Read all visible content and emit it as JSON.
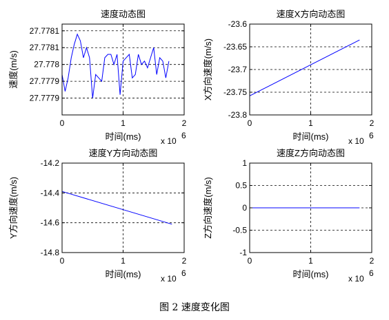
{
  "figure_caption": "图 2  速度变化图",
  "chart_data": [
    {
      "type": "line",
      "title": "速度动态图",
      "xlabel": "时间(ms)",
      "ylabel": "速度(m/s)",
      "x_multiplier": "x 10",
      "x_multiplier_exp": "6",
      "xlim": [
        0,
        2
      ],
      "ylim": [
        27.77785,
        27.77812
      ],
      "xticks": [
        0,
        1,
        2
      ],
      "xtick_labels": [
        "0",
        "1",
        "2"
      ],
      "yticks": [
        27.7779,
        27.77795,
        27.778,
        27.77805,
        27.7781
      ],
      "ytick_labels": [
        "27.7779",
        "27.7779",
        "27.778",
        "27.7781",
        "27.7781"
      ],
      "grid": true,
      "color": "#0000ff",
      "series": [
        {
          "x": [
            0,
            0.05,
            0.1,
            0.15,
            0.2,
            0.25,
            0.3,
            0.35,
            0.4,
            0.45,
            0.5,
            0.55,
            0.6,
            0.65,
            0.7,
            0.75,
            0.8,
            0.85,
            0.9,
            0.95,
            1.0,
            1.05,
            1.1,
            1.15,
            1.2,
            1.25,
            1.3,
            1.35,
            1.4,
            1.45,
            1.5,
            1.55,
            1.6,
            1.65,
            1.7,
            1.75
          ],
          "y": [
            27.77797,
            27.77792,
            27.77796,
            27.77802,
            27.77806,
            27.77809,
            27.77807,
            27.77802,
            27.77805,
            27.77802,
            27.7779,
            27.77797,
            27.77796,
            27.77795,
            27.77802,
            27.77803,
            27.77803,
            27.778,
            27.77803,
            27.77791,
            27.77801,
            27.77802,
            27.77803,
            27.77796,
            27.77797,
            27.77803,
            27.778,
            27.77801,
            27.77799,
            27.77802,
            27.77805,
            27.77797,
            27.77802,
            27.77801,
            27.77796,
            27.77801
          ]
        }
      ]
    },
    {
      "type": "line",
      "title": "速度X方向动态图",
      "xlabel": "时间(ms)",
      "ylabel": "X方向速度(m/s)",
      "x_multiplier": "x 10",
      "x_multiplier_exp": "6",
      "xlim": [
        0,
        2
      ],
      "ylim": [
        -23.8,
        -23.6
      ],
      "xticks": [
        0,
        1,
        2
      ],
      "xtick_labels": [
        "0",
        "1",
        "2"
      ],
      "yticks": [
        -23.8,
        -23.75,
        -23.7,
        -23.65,
        -23.6
      ],
      "ytick_labels": [
        "-23.8",
        "-23.75",
        "-23.7",
        "-23.65",
        "-23.6"
      ],
      "grid": true,
      "color": "#0000ff",
      "series": [
        {
          "x": [
            0,
            1.8
          ],
          "y": [
            -23.758,
            -23.635
          ]
        }
      ]
    },
    {
      "type": "line",
      "title": "速度Y方向动态图",
      "xlabel": "时间(ms)",
      "ylabel": "Y方向速度(m/s)",
      "x_multiplier": "x 10",
      "x_multiplier_exp": "6",
      "xlim": [
        0,
        2
      ],
      "ylim": [
        -14.8,
        -14.2
      ],
      "xticks": [
        0,
        1,
        2
      ],
      "xtick_labels": [
        "0",
        "1",
        "2"
      ],
      "yticks": [
        -14.8,
        -14.6,
        -14.4,
        -14.2
      ],
      "ytick_labels": [
        "-14.8",
        "-14.6",
        "-14.4",
        "-14.2"
      ],
      "grid": true,
      "color": "#0000ff",
      "series": [
        {
          "x": [
            0,
            1.8
          ],
          "y": [
            -14.39,
            -14.61
          ]
        }
      ]
    },
    {
      "type": "line",
      "title": "速度Z方向动态图",
      "xlabel": "时间(ms)",
      "ylabel": "Z方向速度(m/s)",
      "x_multiplier": "x 10",
      "x_multiplier_exp": "6",
      "xlim": [
        0,
        2
      ],
      "ylim": [
        -1,
        1
      ],
      "xticks": [
        0,
        1,
        2
      ],
      "xtick_labels": [
        "0",
        "1",
        "2"
      ],
      "yticks": [
        -1,
        -0.5,
        0,
        0.5,
        1
      ],
      "ytick_labels": [
        "-1",
        "-0.5",
        "0",
        "0.5",
        "1"
      ],
      "grid": true,
      "color": "#0000ff",
      "series": [
        {
          "x": [
            0,
            1.8
          ],
          "y": [
            0,
            0
          ]
        }
      ]
    }
  ]
}
